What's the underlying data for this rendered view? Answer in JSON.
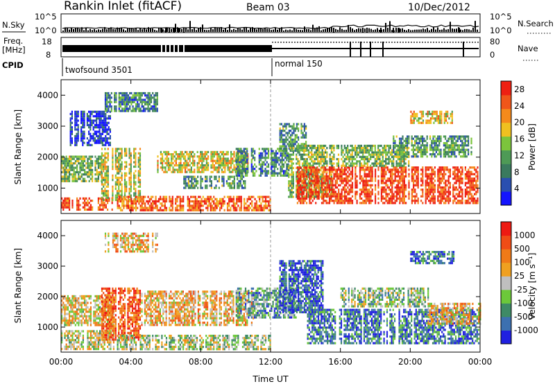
{
  "header": {
    "title": "Rankin Inlet (fitACF)",
    "beam": "Beam 03",
    "date": "10/Dec/2012"
  },
  "top_panels": {
    "nsky_label": "N.Sky",
    "nsearch_label": "N.Search",
    "nsky_ticks": [
      "10^5",
      "10^0"
    ],
    "nsearch_ticks": [
      "10^5",
      "10^0"
    ],
    "freq_label_1": "Freq.",
    "freq_label_2": "[MHz]",
    "freq_ticks": [
      "18",
      "8"
    ],
    "nave_label": "Nave",
    "nave_ticks": [
      "80",
      "0"
    ],
    "cpid_label": "CPID",
    "cpid_segments": [
      {
        "label": "twofsound 3501",
        "start_hour": 0,
        "end_hour": 12
      },
      {
        "label": "normal 150",
        "start_hour": 12,
        "end_hour": 24
      }
    ]
  },
  "colors": {
    "power_scale": [
      "#1414ff",
      "#2a4fb0",
      "#3a7a5e",
      "#4e9a56",
      "#7cc43c",
      "#f0c020",
      "#f58a1c",
      "#f0561a",
      "#ee2012"
    ],
    "velocity_scale": [
      "#2020e0",
      "#3c70b0",
      "#3e8a66",
      "#6cc83a",
      "#bfbfbf",
      "#f0a020",
      "#f07a18",
      "#f04c16",
      "#ee1a12"
    ]
  },
  "chart_data": [
    {
      "type": "heatmap",
      "title": "",
      "quantity": "Power",
      "xlabel": "Time UT",
      "ylabel": "Slant Range [km]",
      "xlim_hours": [
        0,
        24
      ],
      "ylim_km": [
        180,
        4500
      ],
      "x_ticks": [
        "00:00",
        "04:00",
        "08:00",
        "12:00",
        "16:00",
        "20:00",
        "00:00"
      ],
      "y_ticks": [
        "1000",
        "2000",
        "3000",
        "4000"
      ],
      "colorbar_label": "Power [dB]",
      "colorbar_ticks": [
        "4",
        "8",
        "12",
        "16",
        "20",
        "24",
        "28"
      ],
      "colorbar_range": [
        0,
        30
      ],
      "regions": [
        {
          "t0": 0.0,
          "t1": 2.3,
          "r0": 1200,
          "r1": 2050,
          "level": 0.45
        },
        {
          "t0": 0.0,
          "t1": 3.0,
          "r0": 300,
          "r1": 700,
          "level": 0.85
        },
        {
          "t0": 0.5,
          "t1": 2.8,
          "r0": 2400,
          "r1": 3500,
          "level": 0.1
        },
        {
          "t0": 2.3,
          "t1": 4.5,
          "r0": 600,
          "r1": 2300,
          "level": 0.55
        },
        {
          "t0": 2.5,
          "t1": 5.5,
          "r0": 3500,
          "r1": 4100,
          "level": 0.3
        },
        {
          "t0": 3.2,
          "t1": 12.0,
          "r0": 250,
          "r1": 750,
          "level": 0.82
        },
        {
          "t0": 5.5,
          "t1": 11.0,
          "r0": 1500,
          "r1": 2200,
          "level": 0.58
        },
        {
          "t0": 7.0,
          "t1": 10.5,
          "r0": 1000,
          "r1": 1400,
          "level": 0.35
        },
        {
          "t0": 10.0,
          "t1": 13.0,
          "r0": 1400,
          "r1": 2300,
          "level": 0.3
        },
        {
          "t0": 12.5,
          "t1": 14.0,
          "r0": 2200,
          "r1": 3100,
          "level": 0.35
        },
        {
          "t0": 13.0,
          "t1": 15.5,
          "r0": 700,
          "r1": 2400,
          "level": 0.45
        },
        {
          "t0": 13.5,
          "t1": 23.9,
          "r0": 500,
          "r1": 1700,
          "level": 0.9
        },
        {
          "t0": 15.5,
          "t1": 20.0,
          "r0": 1700,
          "r1": 2400,
          "level": 0.45
        },
        {
          "t0": 19.0,
          "t1": 23.5,
          "r0": 2000,
          "r1": 2700,
          "level": 0.35
        },
        {
          "t0": 20.0,
          "t1": 22.5,
          "r0": 3100,
          "r1": 3500,
          "level": 0.6
        }
      ]
    },
    {
      "type": "heatmap",
      "title": "",
      "quantity": "Velocity",
      "xlabel": "Time UT",
      "ylabel": "Slant Range [km]",
      "xlim_hours": [
        0,
        24
      ],
      "ylim_km": [
        180,
        4500
      ],
      "x_ticks": [
        "00:00",
        "04:00",
        "08:00",
        "12:00",
        "16:00",
        "20:00",
        "00:00"
      ],
      "y_ticks": [
        "1000",
        "2000",
        "3000",
        "4000"
      ],
      "colorbar_label": "Velocity [m s⁻¹]",
      "colorbar_ticks": [
        "1000",
        "500",
        "100",
        "25",
        "-25",
        "-100",
        "-500",
        "-1000"
      ],
      "colorbar_range": [
        -1000,
        1000
      ],
      "regions": [
        {
          "t0": 0.0,
          "t1": 3.0,
          "r0": 1100,
          "r1": 2050,
          "level": 0.55
        },
        {
          "t0": 0.0,
          "t1": 3.0,
          "r0": 300,
          "r1": 900,
          "level": 0.5
        },
        {
          "t0": 2.3,
          "t1": 4.5,
          "r0": 600,
          "r1": 2300,
          "level": 0.8
        },
        {
          "t0": 2.5,
          "t1": 5.5,
          "r0": 3500,
          "r1": 4100,
          "level": 0.6
        },
        {
          "t0": 3.2,
          "t1": 12.0,
          "r0": 250,
          "r1": 750,
          "level": 0.45
        },
        {
          "t0": 4.5,
          "t1": 11.0,
          "r0": 1100,
          "r1": 2200,
          "level": 0.6
        },
        {
          "t0": 10.0,
          "t1": 13.5,
          "r0": 1300,
          "r1": 2300,
          "level": 0.3
        },
        {
          "t0": 12.5,
          "t1": 15.0,
          "r0": 1500,
          "r1": 3200,
          "level": 0.15
        },
        {
          "t0": 14.0,
          "t1": 24.0,
          "r0": 500,
          "r1": 1600,
          "level": 0.2
        },
        {
          "t0": 16.0,
          "t1": 21.0,
          "r0": 1700,
          "r1": 2300,
          "level": 0.4
        },
        {
          "t0": 21.0,
          "t1": 24.0,
          "r0": 1100,
          "r1": 1800,
          "level": 0.6
        },
        {
          "t0": 20.0,
          "t1": 22.5,
          "r0": 3100,
          "r1": 3500,
          "level": 0.2
        }
      ]
    }
  ]
}
